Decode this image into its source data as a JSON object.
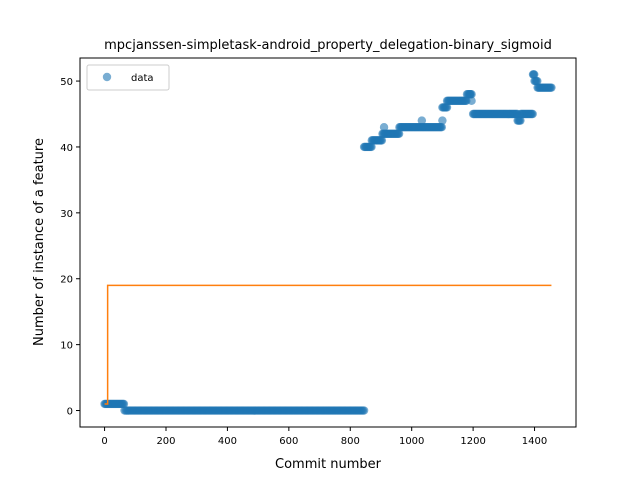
{
  "chart_data": {
    "type": "scatter",
    "title": "mpcjanssen-simpletask-android_property_delegation-binary_sigmoid",
    "xlabel": "Commit number",
    "ylabel": "Number of instance of a feature",
    "xlim": [
      -80,
      1535
    ],
    "ylim": [
      -2.5,
      53.5
    ],
    "xticks": [
      0,
      200,
      400,
      600,
      800,
      1000,
      1200,
      1400
    ],
    "yticks": [
      0,
      10,
      20,
      30,
      40,
      50
    ],
    "grid": false,
    "legend": {
      "position": "top-left",
      "entries": [
        "data"
      ]
    },
    "colors": {
      "data": "#1f77b4",
      "fit": "#ff7f0e"
    },
    "series": [
      {
        "name": "data",
        "kind": "scatter",
        "segments": [
          {
            "x_start": 0,
            "x_end": 65,
            "step": 3,
            "y": 1
          },
          {
            "x_start": 65,
            "x_end": 845,
            "step": 4,
            "y": 0
          },
          {
            "x_start": 845,
            "x_end": 870,
            "step": 3,
            "y": 40
          },
          {
            "x_start": 870,
            "x_end": 905,
            "step": 3,
            "y": 41
          },
          {
            "x_start": 905,
            "x_end": 960,
            "step": 3,
            "y": 42
          },
          {
            "x_start": 960,
            "x_end": 1100,
            "step": 3,
            "y": 43
          },
          {
            "x_start": 1100,
            "x_end": 1115,
            "step": 3,
            "y": 46
          },
          {
            "x_start": 1115,
            "x_end": 1180,
            "step": 3,
            "y": 47
          },
          {
            "x_start": 1180,
            "x_end": 1195,
            "step": 3,
            "y": 48
          },
          {
            "x_start": 1200,
            "x_end": 1345,
            "step": 3,
            "y": 45
          },
          {
            "x_start": 1345,
            "x_end": 1355,
            "step": 3,
            "y": 44
          },
          {
            "x_start": 1355,
            "x_end": 1395,
            "step": 3,
            "y": 45
          },
          {
            "x_start": 1395,
            "x_end": 1400,
            "step": 2,
            "y": 51
          },
          {
            "x_start": 1400,
            "x_end": 1410,
            "step": 3,
            "y": 50
          },
          {
            "x_start": 1410,
            "x_end": 1455,
            "step": 3,
            "y": 49
          }
        ],
        "points": [
          {
            "x": 910,
            "y": 43
          },
          {
            "x": 1033,
            "y": 44
          },
          {
            "x": 1100,
            "y": 44
          },
          {
            "x": 1195,
            "y": 47
          },
          {
            "x": 1190,
            "y": 48
          }
        ]
      },
      {
        "kind": "line",
        "x": [
          0,
          10,
          10,
          1455
        ],
        "y": [
          1,
          1,
          19,
          19
        ]
      }
    ]
  }
}
